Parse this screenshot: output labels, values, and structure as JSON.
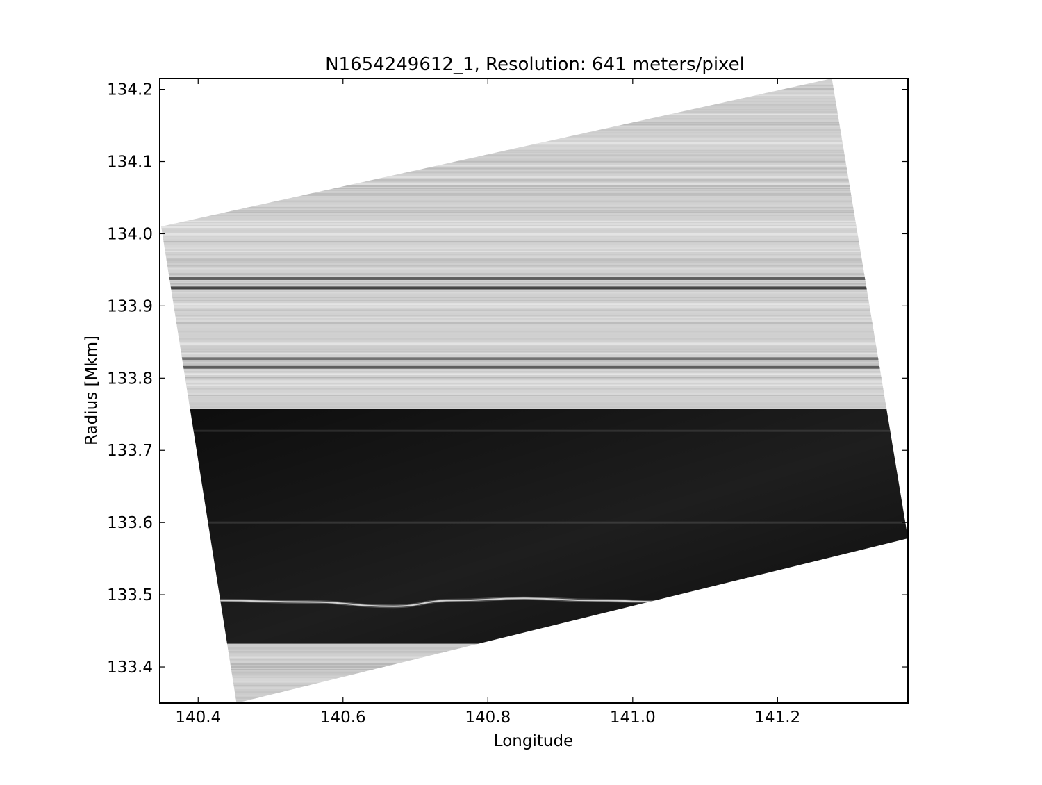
{
  "chart_data": {
    "type": "heatmap",
    "title": "N1654249612_1, Resolution: 641 meters/pixel",
    "xlabel": "Longitude",
    "ylabel": "Radius [Mkm]",
    "xlim": [
      140.347,
      141.38
    ],
    "ylim": [
      133.35,
      134.215
    ],
    "x_ticks": [
      140.4,
      140.6,
      140.8,
      141.0,
      141.2
    ],
    "x_tick_labels": [
      "140.4",
      "140.6",
      "140.8",
      "141.0",
      "141.2"
    ],
    "y_ticks": [
      133.4,
      133.5,
      133.6,
      133.7,
      133.8,
      133.9,
      134.0,
      134.1,
      134.2
    ],
    "y_tick_labels": [
      "133.4",
      "133.5",
      "133.6",
      "133.7",
      "133.8",
      "133.9",
      "134.0",
      "134.1",
      "134.2"
    ],
    "colormap": "grayscale",
    "grid": false,
    "image_footprint_corners": [
      {
        "lon": 140.349,
        "radius": 134.01
      },
      {
        "lon": 141.275,
        "radius": 134.215
      },
      {
        "lon": 141.38,
        "radius": 133.578
      },
      {
        "lon": 140.453,
        "radius": 133.35
      }
    ],
    "regions": [
      {
        "name": "bright outer rings",
        "radius_min": 133.757,
        "radius_max": 134.215,
        "brightness": 0.82
      },
      {
        "name": "dark gap",
        "radius_min": 133.432,
        "radius_max": 133.757,
        "brightness": 0.05
      },
      {
        "name": "bright inner rings",
        "radius_min": 133.35,
        "radius_max": 133.432,
        "brightness": 0.8
      }
    ],
    "dark_bands": [
      {
        "radius": 133.938,
        "darkness": 0.55
      },
      {
        "radius": 133.925,
        "darkness": 0.65
      },
      {
        "radius": 133.827,
        "darkness": 0.4
      },
      {
        "radius": 133.815,
        "darkness": 0.55
      }
    ],
    "dark_gap_features": [
      {
        "radius": 133.727,
        "brightness": 0.18
      },
      {
        "radius": 133.6,
        "brightness": 0.2
      }
    ],
    "ringlet": {
      "name": "bright ringlet",
      "points": [
        {
          "lon": 140.43,
          "radius": 133.492
        },
        {
          "lon": 140.55,
          "radius": 133.49
        },
        {
          "lon": 140.67,
          "radius": 133.484
        },
        {
          "lon": 140.75,
          "radius": 133.492
        },
        {
          "lon": 140.85,
          "radius": 133.495
        },
        {
          "lon": 140.95,
          "radius": 133.492
        },
        {
          "lon": 141.05,
          "radius": 133.49
        }
      ]
    },
    "colors": {
      "bright_ring": "#d2d2d2",
      "dark_gap": "#0c0c0c",
      "ringlet": "#e8e8e8",
      "axes": "#000000",
      "background": "#ffffff"
    }
  }
}
